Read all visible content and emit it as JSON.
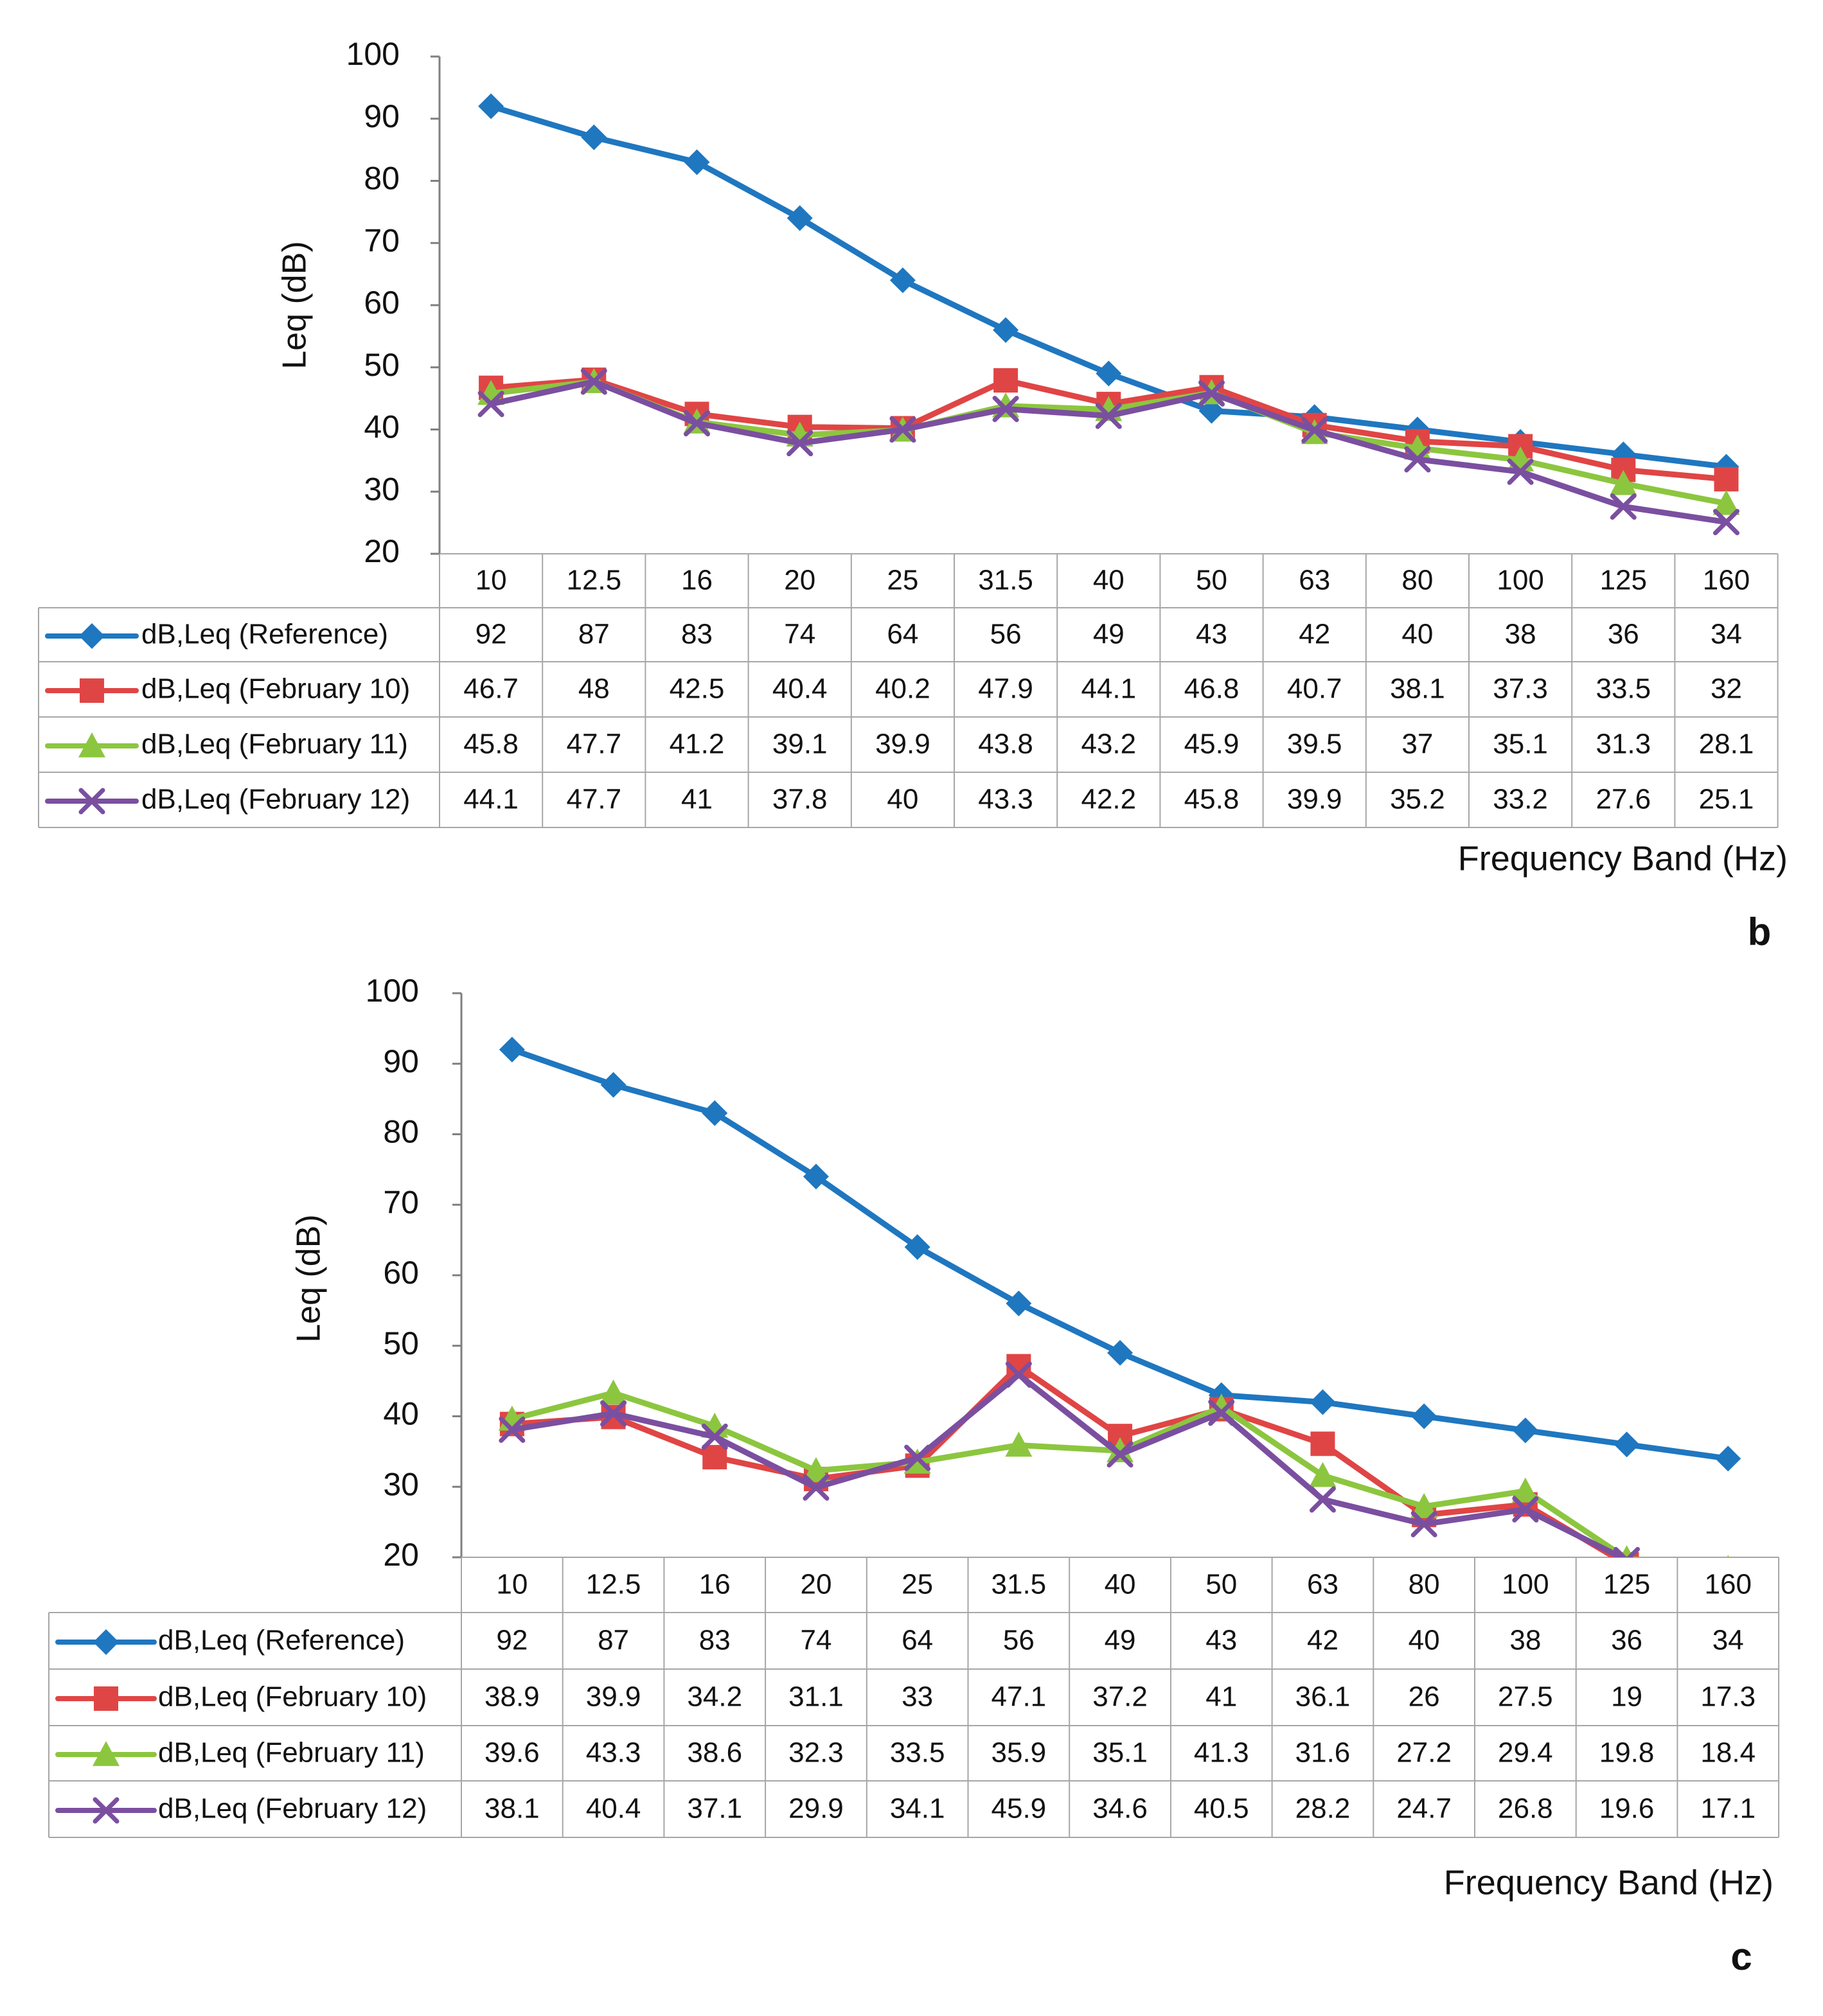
{
  "chart_data": [
    {
      "type": "line",
      "panel_label": "b",
      "ylabel": "Leq (dB)",
      "xlabel": "Frequency Band (Hz)",
      "ylim": [
        20,
        100
      ],
      "yticks": [
        "20",
        "30",
        "40",
        "50",
        "60",
        "70",
        "80",
        "90",
        "100"
      ],
      "categories": [
        "10",
        "12.5",
        "16",
        "20",
        "25",
        "31.5",
        "40",
        "50",
        "63",
        "80",
        "100",
        "125",
        "160"
      ],
      "series": [
        {
          "name": "dB,Leq (Reference)",
          "color": "#1f77c0",
          "marker": "diamond",
          "values": [
            92,
            87,
            83,
            74,
            64,
            56,
            49,
            43,
            42,
            40,
            38,
            36,
            34
          ],
          "labels": [
            "92",
            "87",
            "83",
            "74",
            "64",
            "56",
            "49",
            "43",
            "42",
            "40",
            "38",
            "36",
            "34"
          ]
        },
        {
          "name": "dB,Leq (February 10)",
          "color": "#e04545",
          "marker": "square",
          "values": [
            46.7,
            48,
            42.5,
            40.4,
            40.2,
            47.9,
            44.1,
            46.8,
            40.7,
            38.1,
            37.3,
            33.5,
            32
          ],
          "labels": [
            "46.7",
            "48",
            "42.5",
            "40.4",
            "40.2",
            "47.9",
            "44.1",
            "46.8",
            "40.7",
            "38.1",
            "37.3",
            "33.5",
            "32"
          ]
        },
        {
          "name": "dB,Leq (February 11)",
          "color": "#8cc63f",
          "marker": "triangle",
          "values": [
            45.8,
            47.7,
            41.2,
            39.1,
            39.9,
            43.8,
            43.2,
            45.9,
            39.5,
            37,
            35.1,
            31.3,
            28.1
          ],
          "labels": [
            "45.8",
            "47.7",
            "41.2",
            "39.1",
            "39.9",
            "43.8",
            "43.2",
            "45.9",
            "39.5",
            "37",
            "35.1",
            "31.3",
            "28.1"
          ]
        },
        {
          "name": "dB,Leq (February 12)",
          "color": "#7b4fa0",
          "marker": "x",
          "values": [
            44.1,
            47.7,
            41,
            37.8,
            40,
            43.3,
            42.2,
            45.8,
            39.9,
            35.2,
            33.2,
            27.6,
            25.1
          ],
          "labels": [
            "44.1",
            "47.7",
            "41",
            "37.8",
            "40",
            "43.3",
            "42.2",
            "45.8",
            "39.9",
            "35.2",
            "33.2",
            "27.6",
            "25.1"
          ]
        }
      ]
    },
    {
      "type": "line",
      "panel_label": "c",
      "ylabel": "Leq (dB)",
      "xlabel": "Frequency Band (Hz)",
      "ylim": [
        20,
        100
      ],
      "yticks": [
        "20",
        "30",
        "40",
        "50",
        "60",
        "70",
        "80",
        "90",
        "100"
      ],
      "categories": [
        "10",
        "12.5",
        "16",
        "20",
        "25",
        "31.5",
        "40",
        "50",
        "63",
        "80",
        "100",
        "125",
        "160"
      ],
      "series": [
        {
          "name": "dB,Leq (Reference)",
          "color": "#1f77c0",
          "marker": "diamond",
          "values": [
            92,
            87,
            83,
            74,
            64,
            56,
            49,
            43,
            42,
            40,
            38,
            36,
            34
          ],
          "labels": [
            "92",
            "87",
            "83",
            "74",
            "64",
            "56",
            "49",
            "43",
            "42",
            "40",
            "38",
            "36",
            "34"
          ]
        },
        {
          "name": "dB,Leq (February 10)",
          "color": "#e04545",
          "marker": "square",
          "values": [
            38.9,
            39.9,
            34.2,
            31.1,
            33,
            47.1,
            37.2,
            41,
            36.1,
            26,
            27.5,
            19,
            17.3
          ],
          "labels": [
            "38.9",
            "39.9",
            "34.2",
            "31.1",
            "33",
            "47.1",
            "37.2",
            "41",
            "36.1",
            "26",
            "27.5",
            "19",
            "17.3"
          ]
        },
        {
          "name": "dB,Leq (February 11)",
          "color": "#8cc63f",
          "marker": "triangle",
          "values": [
            39.6,
            43.3,
            38.6,
            32.3,
            33.5,
            35.9,
            35.1,
            41.3,
            31.6,
            27.2,
            29.4,
            19.8,
            18.4
          ],
          "labels": [
            "39.6",
            "43.3",
            "38.6",
            "32.3",
            "33.5",
            "35.9",
            "35.1",
            "41.3",
            "31.6",
            "27.2",
            "29.4",
            "19.8",
            "18.4"
          ]
        },
        {
          "name": "dB,Leq (February 12)",
          "color": "#7b4fa0",
          "marker": "x",
          "values": [
            38.1,
            40.4,
            37.1,
            29.9,
            34.1,
            45.9,
            34.6,
            40.5,
            28.2,
            24.7,
            26.8,
            19.6,
            17.1
          ],
          "labels": [
            "38.1",
            "40.4",
            "37.1",
            "29.9",
            "34.1",
            "45.9",
            "34.6",
            "40.5",
            "28.2",
            "24.7",
            "26.8",
            "19.6",
            "17.1"
          ]
        }
      ]
    }
  ]
}
